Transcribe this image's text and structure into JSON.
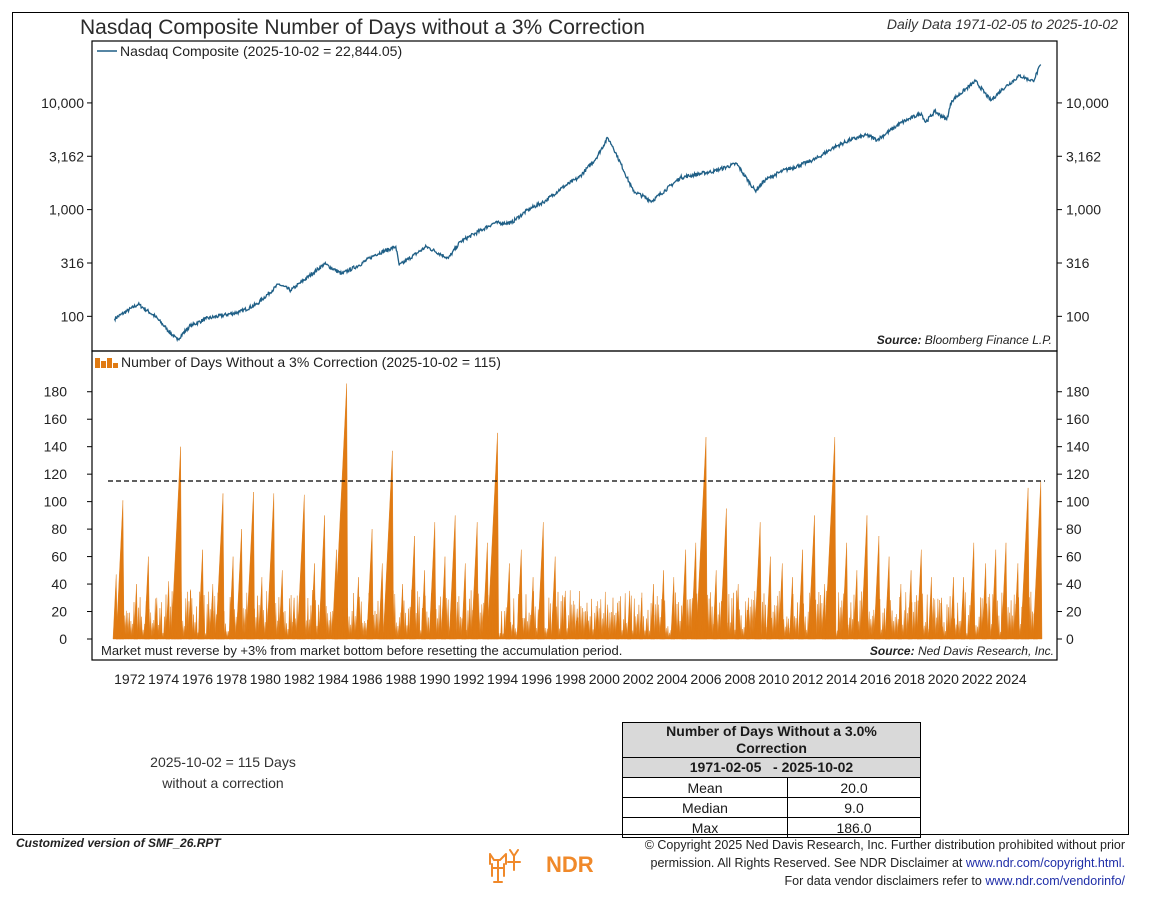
{
  "header": {
    "title": "Nasdaq Composite Number of Days without a 3% Correction",
    "date_range": "Daily Data 1971-02-05 to 2025-10-02"
  },
  "chart_data": [
    {
      "type": "line",
      "legend": "Nasdaq Composite (2025-10-02 = 22,844.05)",
      "yscale": "log",
      "ylim": [
        60,
        30000
      ],
      "yticks": [
        "10,000",
        "3,162",
        "1,000",
        "316",
        "100"
      ],
      "ytick_values": [
        10000,
        3162,
        1000,
        316,
        100
      ],
      "source_label": "Source:",
      "source": "Bloomberg Finance L.P.",
      "color": "#1f5f86",
      "series": [
        {
          "x": [
            1971.1,
            1972.5,
            1973.5,
            1974.8,
            1975.5,
            1976.5,
            1978.5,
            1979.5,
            1980.8,
            1981.5,
            1982.6,
            1983.5,
            1984.5,
            1985.5,
            1986.5,
            1987.7,
            1987.9,
            1989.5,
            1990.8,
            1991.5,
            1993.5,
            1994.5,
            1995.5,
            1996.5,
            1997.5,
            1998.5,
            1999.5,
            2000.2,
            2000.5,
            2001.7,
            2002.8,
            2004.5,
            2006.5,
            2007.8,
            2008.9,
            2009.5,
            2010.5,
            2011.5,
            2012.5,
            2013.5,
            2014.5,
            2015.5,
            2016.1,
            2017.5,
            2018.7,
            2018.95,
            2019.5,
            2020.2,
            2020.5,
            2021.9,
            2022.8,
            2023.5,
            2024.5,
            2025.3,
            2025.75
          ],
          "y": [
            95,
            130,
            100,
            60,
            80,
            95,
            110,
            130,
            200,
            175,
            240,
            310,
            250,
            300,
            380,
            450,
            300,
            450,
            350,
            500,
            750,
            750,
            1000,
            1200,
            1600,
            2000,
            3000,
            4700,
            3900,
            1500,
            1200,
            2000,
            2300,
            2700,
            1500,
            1900,
            2300,
            2600,
            3000,
            3800,
            4500,
            5000,
            4500,
            6500,
            8000,
            6600,
            8300,
            7000,
            10500,
            16000,
            10500,
            13500,
            18000,
            16000,
            22844
          ]
        }
      ]
    },
    {
      "type": "bar",
      "legend": "Number of Days Without a 3% Correction (2025-10-02 = 115)",
      "ylim": [
        0,
        190
      ],
      "yticks": [
        "180",
        "160",
        "140",
        "120",
        "100",
        "80",
        "60",
        "40",
        "20",
        "0"
      ],
      "ytick_values": [
        180,
        160,
        140,
        120,
        100,
        80,
        60,
        40,
        20,
        0
      ],
      "reference_line": 115,
      "note": "Market must reverse by +3% from market bottom before resetting the accumulation period.",
      "source_label": "Source:",
      "source": "Ned Davis Research, Inc.",
      "color": "#e07a12",
      "peaks": {
        "x": [
          1971.2,
          1971.6,
          1972.4,
          1973.1,
          1973.6,
          1974.3,
          1975.0,
          1975.6,
          1976.3,
          1976.9,
          1977.5,
          1978.1,
          1978.6,
          1979.3,
          1979.8,
          1980.5,
          1981.0,
          1981.7,
          1982.3,
          1982.9,
          1983.5,
          1984.2,
          1984.8,
          1985.5,
          1986.3,
          1986.9,
          1987.5,
          1988.1,
          1988.8,
          1989.4,
          1990.0,
          1990.6,
          1991.2,
          1991.8,
          1992.5,
          1993.1,
          1993.7,
          1994.4,
          1995.1,
          1995.8,
          1996.4,
          1997.1,
          1997.7,
          1998.4,
          1999.0,
          1999.6,
          2000.2,
          2000.8,
          2001.5,
          2002.2,
          2002.9,
          2003.5,
          2004.1,
          2004.8,
          2005.4,
          2006.0,
          2006.6,
          2007.2,
          2007.9,
          2008.5,
          2009.2,
          2009.8,
          2010.5,
          2011.1,
          2011.7,
          2012.4,
          2013.0,
          2013.6,
          2014.3,
          2014.9,
          2015.5,
          2016.2,
          2016.8,
          2017.5,
          2018.1,
          2018.7,
          2019.3,
          2019.9,
          2020.6,
          2021.2,
          2021.8,
          2022.5,
          2023.1,
          2023.7,
          2024.4,
          2025.0,
          2025.75
        ],
        "y": [
          47,
          101,
          40,
          60,
          30,
          42,
          140,
          35,
          65,
          40,
          106,
          60,
          80,
          107,
          45,
          106,
          50,
          30,
          105,
          55,
          90,
          65,
          186,
          45,
          80,
          55,
          137,
          40,
          75,
          50,
          85,
          60,
          90,
          55,
          85,
          70,
          150,
          55,
          65,
          45,
          85,
          60,
          35,
          22,
          20,
          20,
          25,
          20,
          35,
          30,
          40,
          50,
          45,
          65,
          70,
          147,
          50,
          95,
          40,
          30,
          85,
          60,
          55,
          45,
          65,
          90,
          40,
          147,
          70,
          50,
          90,
          75,
          60,
          40,
          50,
          65,
          45,
          30,
          45,
          45,
          70,
          55,
          65,
          70,
          55,
          110,
          115
        ]
      }
    }
  ],
  "x_axis": {
    "ticks": [
      "1972",
      "1974",
      "1976",
      "1978",
      "1980",
      "1982",
      "1984",
      "1986",
      "1988",
      "1990",
      "1992",
      "1994",
      "1996",
      "1998",
      "2000",
      "2002",
      "2004",
      "2006",
      "2008",
      "2010",
      "2012",
      "2014",
      "2016",
      "2018",
      "2020",
      "2022",
      "2024"
    ],
    "tick_values": [
      1972,
      1974,
      1976,
      1978,
      1980,
      1982,
      1984,
      1986,
      1988,
      1990,
      1992,
      1994,
      1996,
      1998,
      2000,
      2002,
      2004,
      2006,
      2008,
      2010,
      2012,
      2014,
      2016,
      2018,
      2020,
      2022,
      2024
    ],
    "range": [
      1970.6,
      2026.0
    ]
  },
  "stats_table": {
    "header1": "Number of Days Without a 3.0% Correction",
    "header2": "1971-02-05   - 2025-10-02",
    "rows": [
      {
        "label": "Mean",
        "value": "20.0"
      },
      {
        "label": "Median",
        "value": "9.0"
      },
      {
        "label": "Max",
        "value": "186.0"
      }
    ]
  },
  "note": {
    "line1": "2025-10-02 = 115 Days",
    "line2": "without a correction"
  },
  "footer": {
    "customized": "Customized version of SMF_26.RPT",
    "copyright_line1": "© Copyright 2025 Ned Davis Research, Inc. Further distribution prohibited without prior",
    "copyright_line2": "permission. All Rights Reserved. See NDR Disclaimer at",
    "copyright_link1": "www.ndr.com/copyright.html.",
    "copyright_line3": "For data vendor disclaimers refer to",
    "copyright_link2": "www.ndr.com/vendorinfo/",
    "logo_text": "NDR",
    "logo_icon": "bull-bear-icon",
    "logo_color": "#f0892a"
  }
}
